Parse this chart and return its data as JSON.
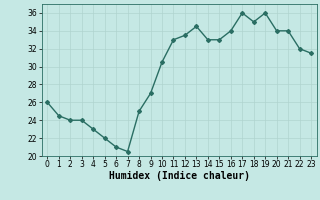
{
  "x": [
    0,
    1,
    2,
    3,
    4,
    5,
    6,
    7,
    8,
    9,
    10,
    11,
    12,
    13,
    14,
    15,
    16,
    17,
    18,
    19,
    20,
    21,
    22,
    23
  ],
  "y": [
    26,
    24.5,
    24,
    24,
    23,
    22,
    21,
    20.5,
    25,
    27,
    30.5,
    33,
    33.5,
    34.5,
    33,
    33,
    34,
    36,
    35,
    36,
    34,
    34,
    32,
    31.5
  ],
  "line_color": "#2a6e63",
  "marker": "D",
  "marker_size": 2.0,
  "line_width": 1.0,
  "bg_color": "#c5e8e4",
  "grid_color": "#b0d4cf",
  "xlabel": "Humidex (Indice chaleur)",
  "xlabel_fontsize": 7,
  "tick_fontsize": 5.5,
  "ylim": [
    20,
    37
  ],
  "yticks": [
    20,
    22,
    24,
    26,
    28,
    30,
    32,
    34,
    36
  ],
  "xlim": [
    -0.5,
    23.5
  ],
  "xticks": [
    0,
    1,
    2,
    3,
    4,
    5,
    6,
    7,
    8,
    9,
    10,
    11,
    12,
    13,
    14,
    15,
    16,
    17,
    18,
    19,
    20,
    21,
    22,
    23
  ]
}
